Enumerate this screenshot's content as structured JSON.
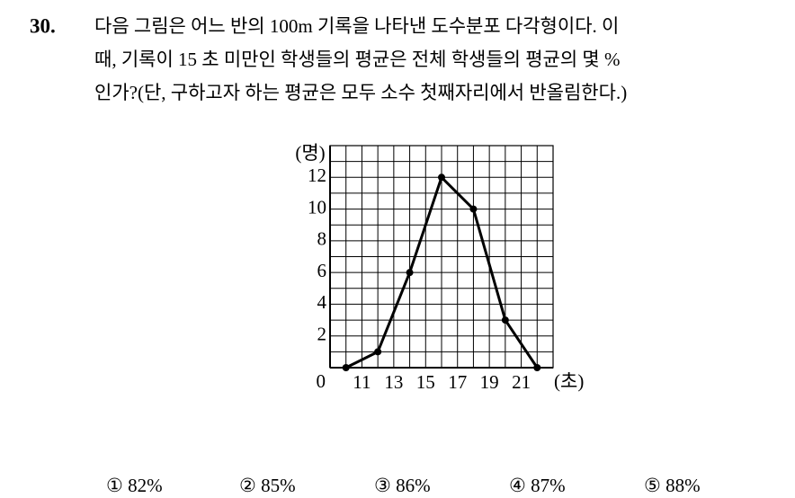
{
  "problem": {
    "number": "30.",
    "lines": [
      "다음 그림은 어느 반의 100m 기록을 나타낸 도수분포 다각형이다. 이",
      "때, 기록이 15 초 미만인 학생들의 평균은 전체 학생들의 평균의 몇 %",
      "인가?(단, 구하고자 하는 평균은 모두 소수 첫째자리에서 반올림한다.)"
    ]
  },
  "chart_data": {
    "type": "line",
    "y_label": "(명)",
    "x_label": "(초)",
    "origin_label": "0",
    "x": [
      10,
      12,
      14,
      16,
      18,
      20,
      22
    ],
    "values": [
      0,
      1,
      6,
      12,
      10,
      3,
      0
    ],
    "color": "#000000",
    "xlim": [
      9,
      23
    ],
    "ylim": [
      0,
      14
    ],
    "xticks": [
      11,
      13,
      15,
      17,
      19,
      21
    ],
    "yticks": [
      2,
      4,
      6,
      8,
      10,
      12
    ],
    "x_grid": [
      10,
      11,
      12,
      13,
      14,
      15,
      16,
      17,
      18,
      19,
      20,
      21,
      22
    ],
    "y_grid": [
      1,
      2,
      3,
      4,
      5,
      6,
      7,
      8,
      9,
      10,
      11,
      12,
      13
    ]
  },
  "choices": [
    "① 82%",
    "② 85%",
    "③ 86%",
    "④ 87%",
    "⑤ 88%"
  ]
}
